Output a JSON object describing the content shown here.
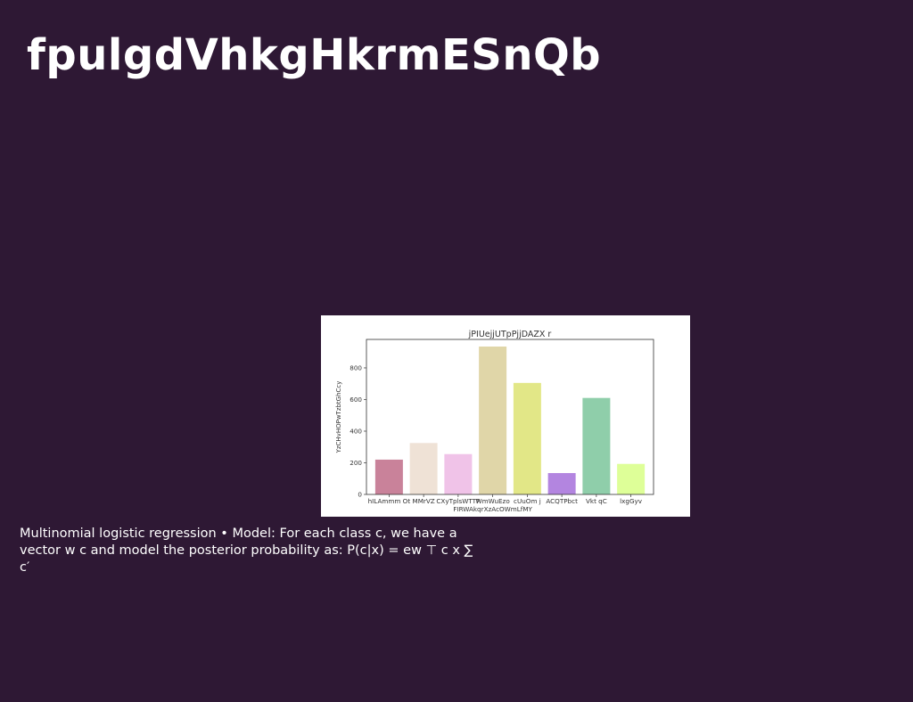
{
  "slide": {
    "title": "fpulgdVhkgHkrmESnQb",
    "caption": "Multinomial logistic regression • Model: For each class c, we have a vector w c and model the posterior probability as: P(c|x) = ew ⊤ c x ∑ c′"
  },
  "chart_data": {
    "type": "bar",
    "title": "jPIUejjUTpPjjDAZX r",
    "xlabel": "",
    "ylabel": "YzCHvHOPwTzbtGhCcy",
    "ylim": [
      0,
      980
    ],
    "yticks": [
      0,
      200,
      400,
      600,
      800
    ],
    "grid": false,
    "categories": [
      "hILAmmm Ot",
      "MMrVZ",
      "CXyTplsWTTP",
      "WmWuEzo FIRWAkqrXzAcOWmLfMY",
      "cUuOm j",
      "ACQTPbct",
      "Vkt qC",
      "lxgGyv"
    ],
    "category_labels": [
      "hILAmmm Ot",
      "MMrVZ",
      "CXyTplsWTTP",
      "WmWuEzo\nFIRWAkqrXzAcOWmLfMY",
      "cUuOm j",
      "ACQTPbct",
      "Vkt qC",
      "lxgGyv"
    ],
    "values": [
      220,
      325,
      255,
      935,
      705,
      135,
      610,
      193
    ],
    "colors": [
      "#c9829a",
      "#efe2d6",
      "#f0c3e8",
      "#e0d6a8",
      "#e2e787",
      "#b385e0",
      "#8fceaa",
      "#deff98"
    ]
  }
}
